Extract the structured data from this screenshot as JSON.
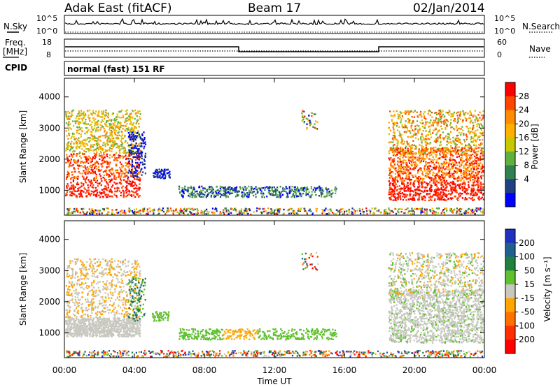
{
  "header": {
    "station": "Adak East (fitACF)",
    "beam": "Beam 17",
    "date": "02/Jan/2014"
  },
  "top_panels": {
    "nsky_label": "N.Sky",
    "nsearch_label": "N.Search",
    "nsky_ticks": [
      "10^5",
      "10^0"
    ],
    "nsearch_ticks": [
      "10^5",
      "10^0"
    ],
    "freq_label_line1": "Freq.",
    "freq_label_line2": "[MHz]",
    "freq_ticks": [
      "18",
      "8"
    ],
    "nave_label": "Nave",
    "nave_ticks": [
      "60",
      "0"
    ],
    "cpid_label": "CPID",
    "cpid_text": "normal (fast) 151 RF"
  },
  "chart_data": [
    {
      "type": "heatmap",
      "panel": "power",
      "ylabel": "Slant Range [km]",
      "xlabel": "",
      "xlim": [
        0,
        24
      ],
      "ylim": [
        200,
        4600
      ],
      "y_ticks": [
        "1000",
        "2000",
        "3000",
        "4000"
      ],
      "colorbar": {
        "label": "Power [dB]",
        "ticks": [
          "28",
          "24",
          "20",
          "16",
          "12",
          "8",
          "4"
        ],
        "colors": [
          "#ff0000",
          "#ff4500",
          "#ff8c00",
          "#ffb000",
          "#c8c800",
          "#60b040",
          "#308050",
          "#204080",
          "#0000ff"
        ]
      },
      "regions": [
        {
          "t0": 0.0,
          "t1": 4.2,
          "r0": 800,
          "r1": 3500,
          "level": "high"
        },
        {
          "t0": 5.0,
          "t1": 6.0,
          "r0": 1400,
          "r1": 1700,
          "level": "low"
        },
        {
          "t0": 6.5,
          "t1": 15.5,
          "r0": 800,
          "r1": 1200,
          "level": "low"
        },
        {
          "t0": 18.5,
          "t1": 24.0,
          "r0": 700,
          "r1": 3500,
          "level": "high"
        }
      ]
    },
    {
      "type": "heatmap",
      "panel": "velocity",
      "ylabel": "Slant Range [km]",
      "xlabel": "Time UT",
      "xlim": [
        0,
        24
      ],
      "ylim": [
        200,
        4600
      ],
      "x_ticks": [
        "00:00",
        "04:00",
        "08:00",
        "12:00",
        "16:00",
        "20:00",
        "00:00"
      ],
      "y_ticks": [
        "1000",
        "2000",
        "3000",
        "4000"
      ],
      "colorbar": {
        "label": "Velocity [m s⁻¹]",
        "ticks": [
          "200",
          "100",
          "50",
          "15",
          "-15",
          "-50",
          "-100",
          "-200"
        ],
        "colors": [
          "#2030c0",
          "#206090",
          "#208040",
          "#60c030",
          "#c8c8c0",
          "#ffa500",
          "#ff7000",
          "#ff3000",
          "#ff0000"
        ]
      }
    }
  ]
}
